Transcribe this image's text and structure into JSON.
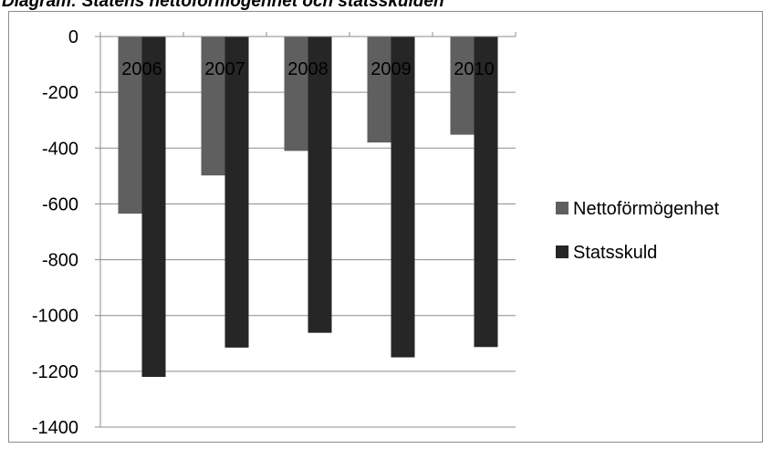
{
  "chart_data": {
    "type": "bar",
    "title": "Diagram: Statens nettoförmögenhet och statsskulden",
    "categories": [
      "2006",
      "2007",
      "2008",
      "2009",
      "2010"
    ],
    "series": [
      {
        "name": "Nettoförmögenhet",
        "values": [
          -635,
          -498,
          -410,
          -380,
          -352
        ],
        "color": "#5f5f5f"
      },
      {
        "name": "Statsskuld",
        "values": [
          -1220,
          -1115,
          -1062,
          -1150,
          -1113
        ],
        "color": "#262626"
      }
    ],
    "yticks": [
      "0",
      "-200",
      "-400",
      "-600",
      "-800",
      "-1000",
      "-1200",
      "-1400"
    ],
    "ylim": [
      -1400,
      0
    ],
    "xlabel": "",
    "ylabel": "",
    "grid": true,
    "legend_position": "right"
  }
}
